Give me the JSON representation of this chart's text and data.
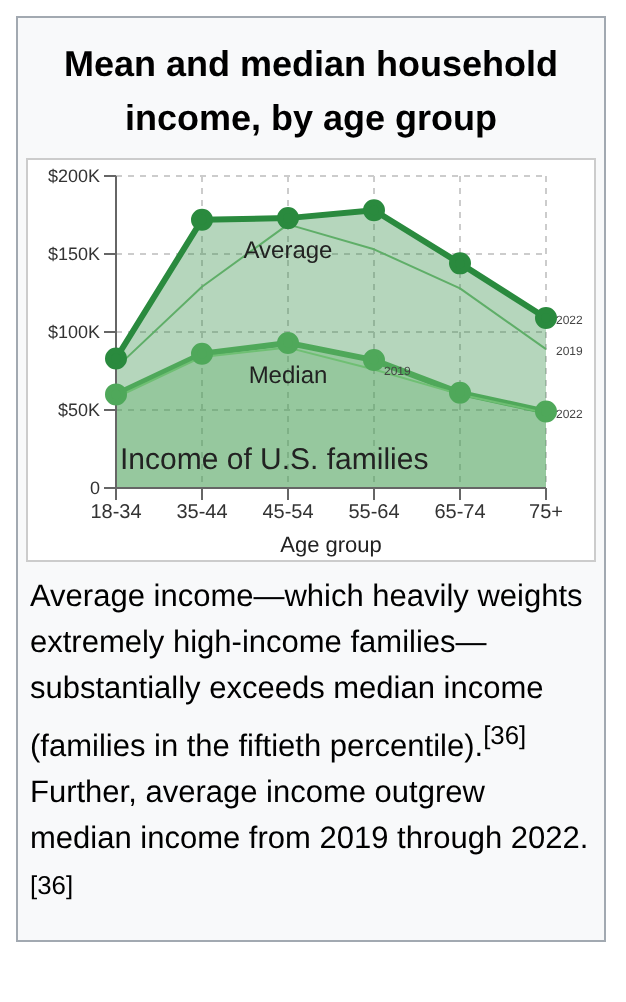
{
  "chart_data": {
    "type": "line",
    "title": "Mean and median household income, by age group",
    "xlabel": "Age group",
    "categories": [
      "18-34",
      "35-44",
      "45-54",
      "55-64",
      "65-74",
      "75+"
    ],
    "series": [
      {
        "name": "Average",
        "type": "area",
        "color": "#2a8a3e",
        "values": [
          83,
          172,
          173,
          178,
          144,
          109
        ],
        "marker": "circle"
      },
      {
        "color": "#5fae68",
        "values": [
          77,
          129,
          169,
          153,
          128,
          89
        ],
        "marker": "none"
      },
      {
        "name": "Median",
        "type": "area",
        "color": "#4fa85a",
        "values": [
          60,
          86,
          93,
          82,
          61,
          49
        ],
        "marker": "circle"
      },
      {
        "color": "#6fbf73",
        "values": [
          58,
          84,
          90,
          76,
          60,
          48
        ],
        "marker": "none"
      }
    ],
    "ylim": [
      0,
      200
    ],
    "yticks": [
      {
        "value": 0,
        "label": "0"
      },
      {
        "value": 50,
        "label": "$50K"
      },
      {
        "value": 100,
        "label": "$100K"
      },
      {
        "value": 150,
        "label": "$150K"
      },
      {
        "value": 200,
        "label": "$200K"
      }
    ],
    "grid": true,
    "annotations": [
      "Income of U.S. families",
      {
        "text": "2022",
        "x": "75+",
        "y": 109
      },
      {
        "text": "2019",
        "x": "75+",
        "y": 89
      },
      {
        "text": "2019",
        "x": "55-64",
        "y": 76
      },
      {
        "text": "2022",
        "x": "75+",
        "y": 49
      },
      "Average income—which heavily weights extremely high-income families—substantially exceeds median income (families in the fiftieth percentile).$^{[36]}$ Further, average income outgrew median income from 2019 through 2022.$^{[36]}$"
    ]
  }
}
